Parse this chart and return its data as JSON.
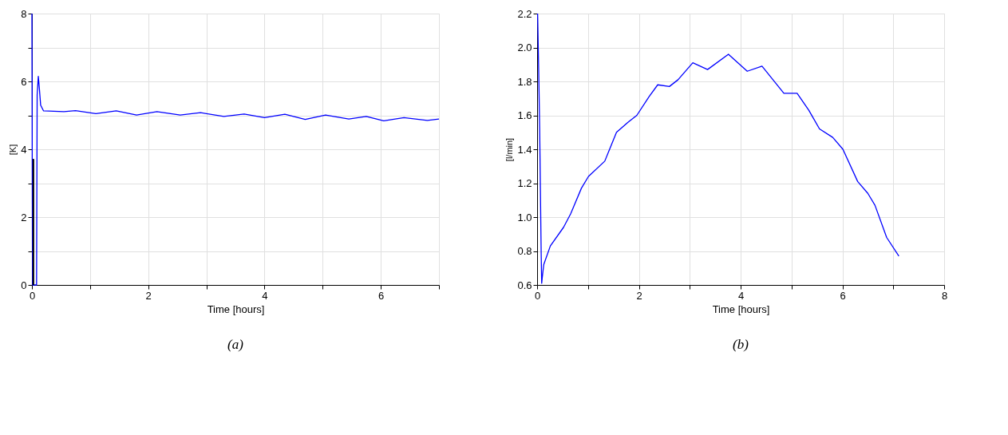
{
  "chart_data": [
    {
      "type": "line",
      "xlabel": "Time [hours]",
      "ylabel": "[K]",
      "annotations": [
        "(a)"
      ],
      "xlim": [
        0,
        7
      ],
      "ylim": [
        0,
        8
      ],
      "grid": true,
      "legend": false,
      "xticks": [
        0,
        {
          "value": 1,
          "label": null
        },
        2,
        {
          "value": 3,
          "label": null
        },
        4,
        {
          "value": 5,
          "label": null
        },
        6,
        {
          "value": 7,
          "label": null
        }
      ],
      "yticks": [
        0,
        {
          "value": 1,
          "label": null
        },
        2,
        {
          "value": 3,
          "label": null
        },
        4,
        {
          "value": 5,
          "label": null
        },
        6,
        {
          "value": 7,
          "label": null
        },
        8
      ],
      "series": [
        {
          "color": "#0000ff",
          "x": [
            0,
            0.01,
            0.08,
            0.09,
            0.11,
            0.13,
            0.15,
            0.2,
            0.55,
            0.75,
            1.1,
            1.45,
            1.8,
            2.15,
            2.55,
            2.9,
            3.3,
            3.65,
            4.0,
            4.35,
            4.7,
            5.05,
            5.45,
            5.75,
            6.05,
            6.4,
            6.8,
            7.0
          ],
          "values": [
            8,
            0,
            0,
            5.6,
            6.15,
            5.75,
            5.3,
            5.13,
            5.11,
            5.14,
            5.05,
            5.13,
            5.01,
            5.11,
            5.01,
            5.08,
            4.97,
            5.04,
            4.93,
            5.03,
            4.88,
            5.01,
            4.89,
            4.97,
            4.84,
            4.93,
            4.85,
            4.89
          ]
        },
        {
          "color": "#000000",
          "x": [
            0.02,
            0.02,
            0.03,
            0.03
          ],
          "values": [
            0,
            3.7,
            3.7,
            0
          ]
        }
      ]
    },
    {
      "type": "line",
      "xlabel": "Time [hours]",
      "ylabel": "[l/min]",
      "annotations": [
        "(b)"
      ],
      "xlim": [
        0,
        8
      ],
      "ylim": [
        0.6,
        2.2
      ],
      "grid": true,
      "legend": false,
      "xticks": [
        0,
        {
          "value": 1,
          "label": null
        },
        2,
        {
          "value": 3,
          "label": null
        },
        4,
        {
          "value": 5,
          "label": null
        },
        6,
        {
          "value": 7,
          "label": null
        },
        8
      ],
      "yticks": [
        0.6,
        0.8,
        {
          "value": 1.0,
          "label": "1.0"
        },
        1.2,
        1.4,
        1.6,
        1.8,
        {
          "value": 2.0,
          "label": "2.0"
        },
        2.2
      ],
      "series": [
        {
          "color": "#0000ff",
          "x": [
            0.01,
            0.03,
            0.05,
            0.08,
            0.09,
            0.1,
            0.13,
            0.26,
            0.52,
            0.66,
            0.87,
            1.01,
            1.33,
            1.56,
            1.79,
            1.96,
            2.2,
            2.37,
            2.6,
            2.77,
            3.06,
            3.35,
            3.76,
            4.13,
            4.42,
            4.85,
            5.11,
            5.34,
            5.55,
            5.81,
            6.01,
            6.3,
            6.5,
            6.64,
            6.87,
            7.11
          ],
          "values": [
            2.2,
            1.88,
            1.52,
            0.78,
            0.61,
            0.64,
            0.72,
            0.83,
            0.94,
            1.02,
            1.17,
            1.24,
            1.33,
            1.5,
            1.56,
            1.6,
            1.71,
            1.78,
            1.77,
            1.81,
            1.91,
            1.87,
            1.96,
            1.86,
            1.89,
            1.73,
            1.73,
            1.63,
            1.52,
            1.47,
            1.4,
            1.21,
            1.14,
            1.07,
            0.88,
            0.77
          ]
        }
      ]
    }
  ]
}
